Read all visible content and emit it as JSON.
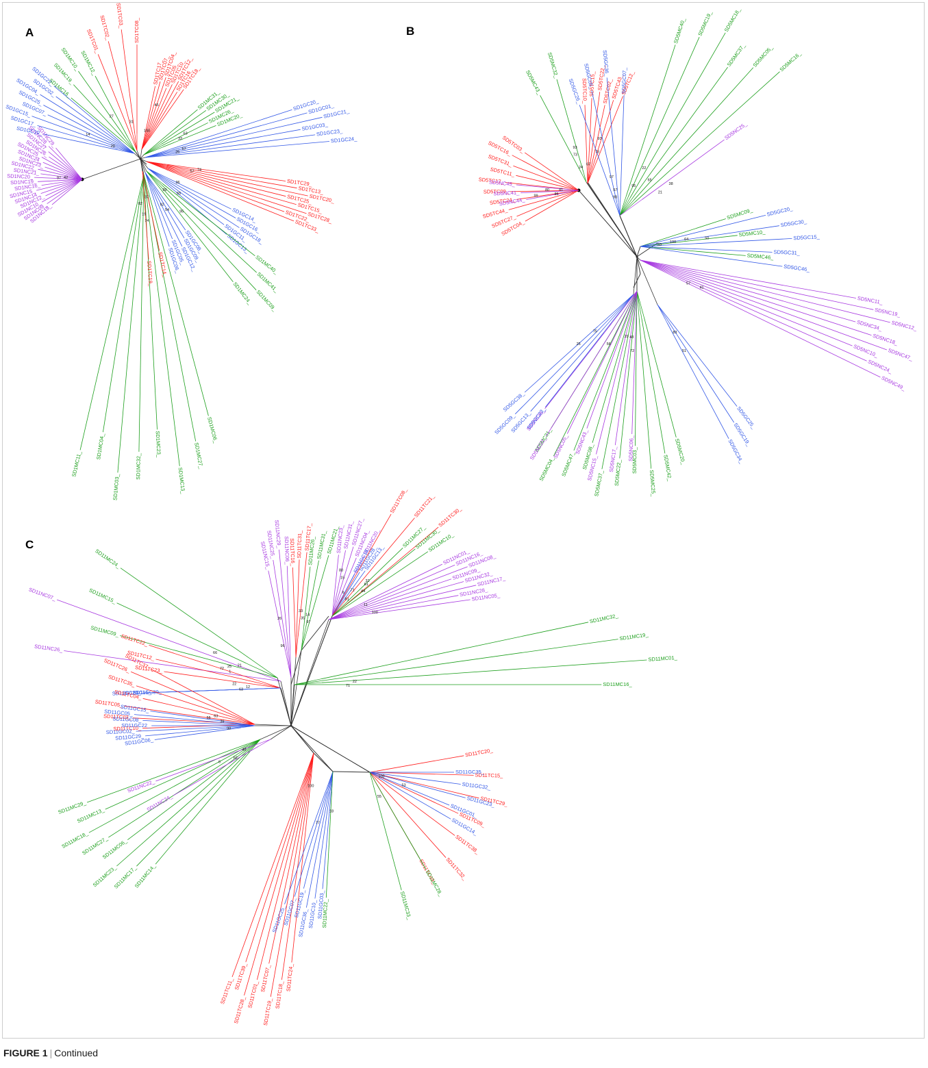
{
  "panels": [
    {
      "letter": "A",
      "clades": [
        {
          "color": "red",
          "labels": [
            "SD1TC17_",
            "SD1TC07_",
            "SD1TC04_",
            "SD1TC05_",
            "SD1TC10_",
            "SD1TC12_",
            "SD1TC16_",
            "SD1TC18_"
          ]
        },
        {
          "color": "green",
          "labels": [
            "SD1MC31_",
            "SD1MC30_",
            "SD1MC21_",
            "SD1MC26_",
            "SD1MC20_"
          ]
        },
        {
          "color": "blue",
          "labels": [
            "SD1GC20_",
            "SD1GC01_",
            "SD1GC21_",
            "SD1GC03_",
            "SD1GC23_",
            "SD1GC24_"
          ]
        },
        {
          "color": "red",
          "labels": [
            "SD1TC29_",
            "SD1TC13_",
            "SD1TC20_",
            "SD1TC25_",
            "SD1TC15_",
            "SD1TC28_",
            "SD1TC22_",
            "SD1TC33_"
          ]
        },
        {
          "color": "blue",
          "labels": [
            "SD1GC14_",
            "SD1GC16_",
            "SD1GC18_",
            "SD1GC11_",
            "SD1GC13_"
          ]
        },
        {
          "color": "green",
          "labels": [
            "SD1MC40_",
            "SD1MC41_",
            "SD1MC09_",
            "SD1MC24_"
          ]
        },
        {
          "color": "blue",
          "labels": [
            "SD1GC08_",
            "SD1GC09_",
            "SD1GC12_",
            "SD1GC05_",
            "SD1GC06_"
          ]
        },
        {
          "color": "green",
          "labels": [
            "SD1MC06_",
            "SD1MC27_",
            "SD1MC13_",
            "SD1MC23_",
            "SD1MC32_",
            "SD1MC03_",
            "SD1MC04_",
            "SD1MC11_"
          ]
        },
        {
          "color": "red",
          "labels": [
            "SD1TC14_",
            "SD1TC19_"
          ]
        },
        {
          "color": "purple",
          "labels": [
            "SD1NC18_",
            "SD1NC09_",
            "SD1NC10_",
            "SD1NC12_",
            "SD1NC14_",
            "SD1NC15_",
            "SD1NC16_",
            "SD1NC19_",
            "SD1NC20_",
            "SD1NC21_",
            "SD1NC22_",
            "SD1NC23_",
            "SD1NC24_",
            "SD1NC25_",
            "SD1NC26_",
            "SD1NC27_",
            "SD1NC28_",
            "SD1NC29_"
          ]
        },
        {
          "color": "blue",
          "labels": [
            "SD1GC10_",
            "SD1GC17_",
            "SD1GC15_",
            "SD1GC07_",
            "SD1GC25_",
            "SD1GC04_",
            "SD1GC02_",
            "SD1GC22_"
          ]
        },
        {
          "color": "green",
          "labels": [
            "SD1MC16_",
            "SD1MC19_",
            "SD1MC10_",
            "SD1MC12_"
          ]
        },
        {
          "color": "red",
          "labels": [
            "SD1TC01_",
            "SD1TC02_",
            "SD1TC03_",
            "SD1TC08_"
          ]
        }
      ],
      "bootstraps": [
        "100",
        "63",
        "57",
        "74",
        "55",
        "99",
        "54",
        "82",
        "74",
        "97",
        "20",
        "27",
        "31",
        "45",
        "33",
        "26",
        "57",
        "36",
        "95",
        "92",
        "37",
        "19",
        "42",
        "14"
      ]
    },
    {
      "letter": "B",
      "clades": [
        {
          "color": "red",
          "labels": [
            "SD5TC10_",
            "SD5TC15_",
            "SD5TC22_",
            "SD5TC02_",
            "SD5TC43_",
            "SD5TC12_"
          ]
        },
        {
          "color": "green",
          "labels": [
            "SD5MC43_",
            "SD5MC32_"
          ]
        },
        {
          "color": "blue",
          "labels": [
            "SD5GC26_",
            "SD5GC05_",
            "SD5GC36_",
            "SD5GC07_"
          ]
        },
        {
          "color": "green",
          "labels": [
            "SD5MC40_",
            "SD5MC19_",
            "SD5MC18_",
            "SD5MC37_",
            "SD5MC05_",
            "SD5MC16_"
          ]
        },
        {
          "color": "purple",
          "labels": [
            "SD5NC25_"
          ]
        },
        {
          "color": "green",
          "labels": [
            "SD5MC09_",
            "SD5MC10_",
            "SD5MC46_"
          ]
        },
        {
          "color": "blue",
          "labels": [
            "SD5GC20_",
            "SD5GC30_",
            "SD5GC15_",
            "SD5GC31_",
            "SD5GC46_"
          ]
        },
        {
          "color": "purple",
          "labels": [
            "SD5NC11_",
            "SD5NC19_",
            "SD5NC12_",
            "SD5NC34_",
            "SD5NC18_",
            "SD5NC47_",
            "SD5NC10_",
            "SD5NC24_",
            "SD5NC49_"
          ]
        },
        {
          "color": "blue",
          "labels": [
            "SD5GC25_",
            "SD5GC19_",
            "SD5GC34_"
          ]
        },
        {
          "color": "green",
          "labels": [
            "SD5MC20_",
            "SD5MC42_",
            "SD5MC25_",
            "SD5MC03_",
            "SD5MC22_",
            "SD5MC37_",
            "SD5MC08_",
            "SD5MC47_",
            "SD5MC04_",
            "SD5MC31_"
          ]
        },
        {
          "color": "purple",
          "labels": [
            "SD5NC06_",
            "SD5NC17_",
            "SD5NC15_",
            "SD5NC43_",
            "SD5NC05_",
            "SD5NC22_",
            "SD5NC36_"
          ]
        },
        {
          "color": "blue",
          "labels": [
            "SD5GC23_",
            "SD5GC13_",
            "SD5GC09_",
            "SD5GC38_"
          ]
        },
        {
          "color": "red",
          "labels": [
            "SD5TC04_",
            "SD5TC27_",
            "SD5TC44_",
            "SD5TC24_",
            "SD5TC09_",
            "SD5TC17_",
            "SD5TC11_",
            "SD5TC31_",
            "SD5TC16_",
            "SD5TC03_"
          ]
        },
        {
          "color": "purple",
          "labels": [
            "SD5NC44_",
            "SD5NC41_",
            "SD5NC45_"
          ]
        }
      ],
      "bootstraps": [
        "67",
        "93",
        "57",
        "22",
        "21",
        "33",
        "50",
        "57",
        "51",
        "48",
        "29",
        "25",
        "41",
        "99",
        "73",
        "24",
        "97",
        "95",
        "38",
        "100",
        "64",
        "41",
        "83",
        "72",
        "56",
        "75",
        "80",
        "86",
        "93",
        "73",
        "98",
        "65"
      ]
    },
    {
      "letter": "C",
      "clades": [
        {
          "color": "purple",
          "labels": [
            "SD11NC15_",
            "SD11NC25_",
            "SD11NC29_",
            "SD11NC06_"
          ]
        },
        {
          "color": "red",
          "labels": [
            "SD11TC16_",
            "SD11TC31_",
            "SD11TC17_"
          ]
        },
        {
          "color": "green",
          "labels": [
            "SD11MC26_",
            "SD11MC31_",
            "SD11MC21_"
          ]
        },
        {
          "color": "purple",
          "labels": [
            "SD11NC23_",
            "SD11NC31_",
            "SD11NC27_",
            "SD11NC04_",
            "SD11NC20_"
          ]
        },
        {
          "color": "blue",
          "labels": [
            "SD11GC18_",
            "SD11GC28_",
            "SD11GC13_"
          ]
        },
        {
          "color": "red",
          "labels": [
            "SD11TC08_",
            "SD11TC21_",
            "SD11TC30_"
          ]
        },
        {
          "color": "green",
          "labels": [
            "SD11MC27_",
            "SD11MC30_",
            "SD11MC10_"
          ]
        },
        {
          "color": "purple",
          "labels": [
            "SD11NC01_",
            "SD11NC16_",
            "SD11NC08_",
            "SD11NC09_",
            "SD11NC32_",
            "SD11NC17_",
            "SD11NC28_",
            "SD11NC05_"
          ]
        },
        {
          "color": "green",
          "labels": [
            "SD11MC32_",
            "SD11MC19_",
            "SD11MC01_",
            "SD11MC16_"
          ]
        },
        {
          "color": "purple",
          "labels": [
            "SD11NC26_",
            "SD11NC07_"
          ]
        },
        {
          "color": "green",
          "labels": [
            "SD11MC09_",
            "SD11MC15_",
            "SD11MC24_"
          ]
        },
        {
          "color": "red",
          "labels": [
            "SD11TC23_",
            "SD11TC12_",
            "SD11TC22_"
          ]
        },
        {
          "color": "blue",
          "labels": [
            "SD11GC39_",
            "SD11GC15_",
            "SD11GC20_"
          ]
        },
        {
          "color": "red",
          "labels": [
            "SD11TC10_",
            "SD11TC03_",
            "SD11TC05_",
            "SD11TC04_",
            "SD11TC35_",
            "SD11TC26_",
            "SD11TC37_"
          ]
        },
        {
          "color": "blue",
          "labels": [
            "SD11GC06_",
            "SD11GC29_",
            "SD11GC02_",
            "SD11GC22_",
            "SD11GC08_",
            "SD11GC05_",
            "SD11GC15_"
          ]
        },
        {
          "color": "green",
          "labels": [
            "SD11MC14_",
            "SD11MC17_",
            "SD11MC23_",
            "SD11MC06_",
            "SD11MC27_",
            "SD11MC18_",
            "SD11MC13_",
            "SD11MC29_"
          ]
        },
        {
          "color": "purple",
          "labels": [
            "SD11NC24_",
            "SD11NC22_"
          ]
        },
        {
          "color": "red",
          "labels": [
            "SD11TC24_",
            "SD11TC18_",
            "SD11TC19_",
            "SD11TC07_",
            "SD11TC01_",
            "SD11TC28_",
            "SD11TC39_",
            "SD11TC11_"
          ]
        },
        {
          "color": "blue",
          "labels": [
            "SD11GC03_",
            "SD11GC10_",
            "SD11GC36_",
            "SD11GC19_",
            "SD11GC07_",
            "SD11GC25_"
          ]
        },
        {
          "color": "green",
          "labels": [
            "SD11MC22_"
          ]
        },
        {
          "color": "red",
          "labels": [
            "SD11TC20_",
            "SD11TC15_",
            "SD11TC29_",
            "SD11TC09_",
            "SD11TC38_",
            "SD11TC32_",
            "SD11TC40_"
          ]
        },
        {
          "color": "blue",
          "labels": [
            "SD11GC35_",
            "SD11GC32_",
            "SD11GC23_",
            "SD11GC01_",
            "SD11GC14_"
          ]
        },
        {
          "color": "green",
          "labels": [
            "SD11MC28_",
            "SD11MC33_"
          ]
        }
      ],
      "bootstraps": [
        "96",
        "33",
        "14",
        "88",
        "71",
        "81",
        "61",
        "100",
        "22",
        "72",
        "21",
        "1",
        "63",
        "55",
        "39",
        "43",
        "62",
        "100",
        "77",
        "18",
        "100",
        "53",
        "55",
        "26",
        "35",
        "97",
        "15",
        "6",
        "32",
        "44",
        "11",
        "71",
        "25",
        "66",
        "22",
        "12",
        "63",
        "98",
        "6"
      ]
    }
  ],
  "colors": {
    "red": "#ff1a1a",
    "green": "#1a9e1a",
    "blue": "#2f55e6",
    "purple": "#a636e0",
    "branch": "#333333",
    "root": "#000000"
  },
  "caption": {
    "figure": "FIGURE 1",
    "separator": "|",
    "text": "Continued"
  }
}
